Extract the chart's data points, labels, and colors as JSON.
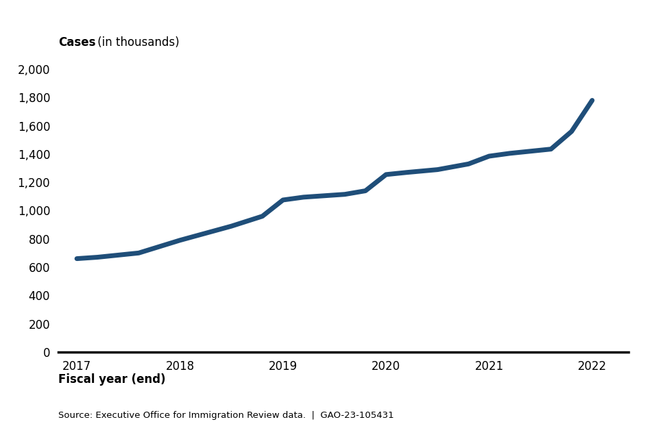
{
  "x": [
    2017,
    2017.2,
    2017.4,
    2017.6,
    2017.8,
    2018,
    2018.2,
    2018.5,
    2018.8,
    2019,
    2019.2,
    2019.4,
    2019.6,
    2019.8,
    2020,
    2020.2,
    2020.5,
    2020.8,
    2021,
    2021.2,
    2021.4,
    2021.6,
    2021.8,
    2022
  ],
  "y": [
    660,
    670,
    685,
    700,
    745,
    790,
    830,
    890,
    960,
    1075,
    1095,
    1105,
    1115,
    1140,
    1255,
    1270,
    1290,
    1330,
    1385,
    1405,
    1420,
    1435,
    1560,
    1780
  ],
  "line_color": "#1f4e79",
  "line_width": 5,
  "xlabel": "Fiscal year (end)",
  "ytick_labels": [
    "0",
    "200",
    "400",
    "600",
    "800",
    "1,000",
    "1,200",
    "1,400",
    "1,600",
    "1,800",
    "2,000"
  ],
  "ytick_values": [
    0,
    200,
    400,
    600,
    800,
    1000,
    1200,
    1400,
    1600,
    1800,
    2000
  ],
  "xtick_values": [
    2017,
    2018,
    2019,
    2020,
    2021,
    2022
  ],
  "ylim": [
    0,
    2100
  ],
  "xlim": [
    2016.82,
    2022.35
  ],
  "source_text": "Source: Executive Office for Immigration Review data.  |  GAO-23-105431",
  "background_color": "#ffffff",
  "axis_line_color": "#000000",
  "label_color": "#000000",
  "font_size_tick": 12,
  "font_size_xlabel": 12,
  "font_size_source": 9.5,
  "cases_label_bold": "Cases",
  "cases_label_normal": " (in thousands)"
}
